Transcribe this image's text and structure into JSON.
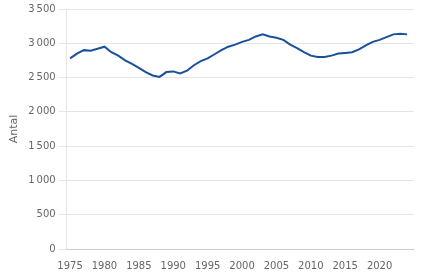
{
  "chart_data": {
    "type": "line",
    "ylabel": "Antal",
    "x": [
      1975,
      1976,
      1977,
      1978,
      1979,
      1980,
      1981,
      1982,
      1983,
      1984,
      1985,
      1986,
      1987,
      1988,
      1989,
      1990,
      1991,
      1992,
      1993,
      1994,
      1995,
      1996,
      1997,
      1998,
      1999,
      2000,
      2001,
      2002,
      2003,
      2004,
      2005,
      2006,
      2007,
      2008,
      2009,
      2010,
      2011,
      2012,
      2013,
      2014,
      2015,
      2016,
      2017,
      2018,
      2019,
      2020,
      2021,
      2022,
      2023,
      2024
    ],
    "values": [
      2780,
      2850,
      2900,
      2890,
      2920,
      2950,
      2870,
      2820,
      2750,
      2700,
      2640,
      2580,
      2530,
      2510,
      2580,
      2590,
      2560,
      2600,
      2680,
      2740,
      2780,
      2840,
      2900,
      2950,
      2980,
      3020,
      3050,
      3100,
      3130,
      3100,
      3080,
      3050,
      2980,
      2930,
      2870,
      2820,
      2800,
      2800,
      2820,
      2850,
      2860,
      2870,
      2910,
      2970,
      3020,
      3050,
      3090,
      3130,
      3140,
      3130
    ],
    "color": "#1a4f9c",
    "xlim": [
      1974.5,
      2025
    ],
    "xticks": [
      1975,
      1980,
      1985,
      1990,
      1995,
      2000,
      2005,
      2010,
      2015,
      2020
    ],
    "ylim": [
      0,
      3500
    ],
    "yticks": [
      0,
      500,
      {
        "value": 1000,
        "label": "1 000"
      },
      {
        "value": 1500,
        "label": "1 500"
      },
      {
        "value": 2000,
        "label": "2 000"
      },
      {
        "value": 2500,
        "label": "2 500"
      },
      {
        "value": 3000,
        "label": "3 000"
      },
      {
        "value": 3500,
        "label": "3 500"
      }
    ],
    "grid": "y"
  }
}
